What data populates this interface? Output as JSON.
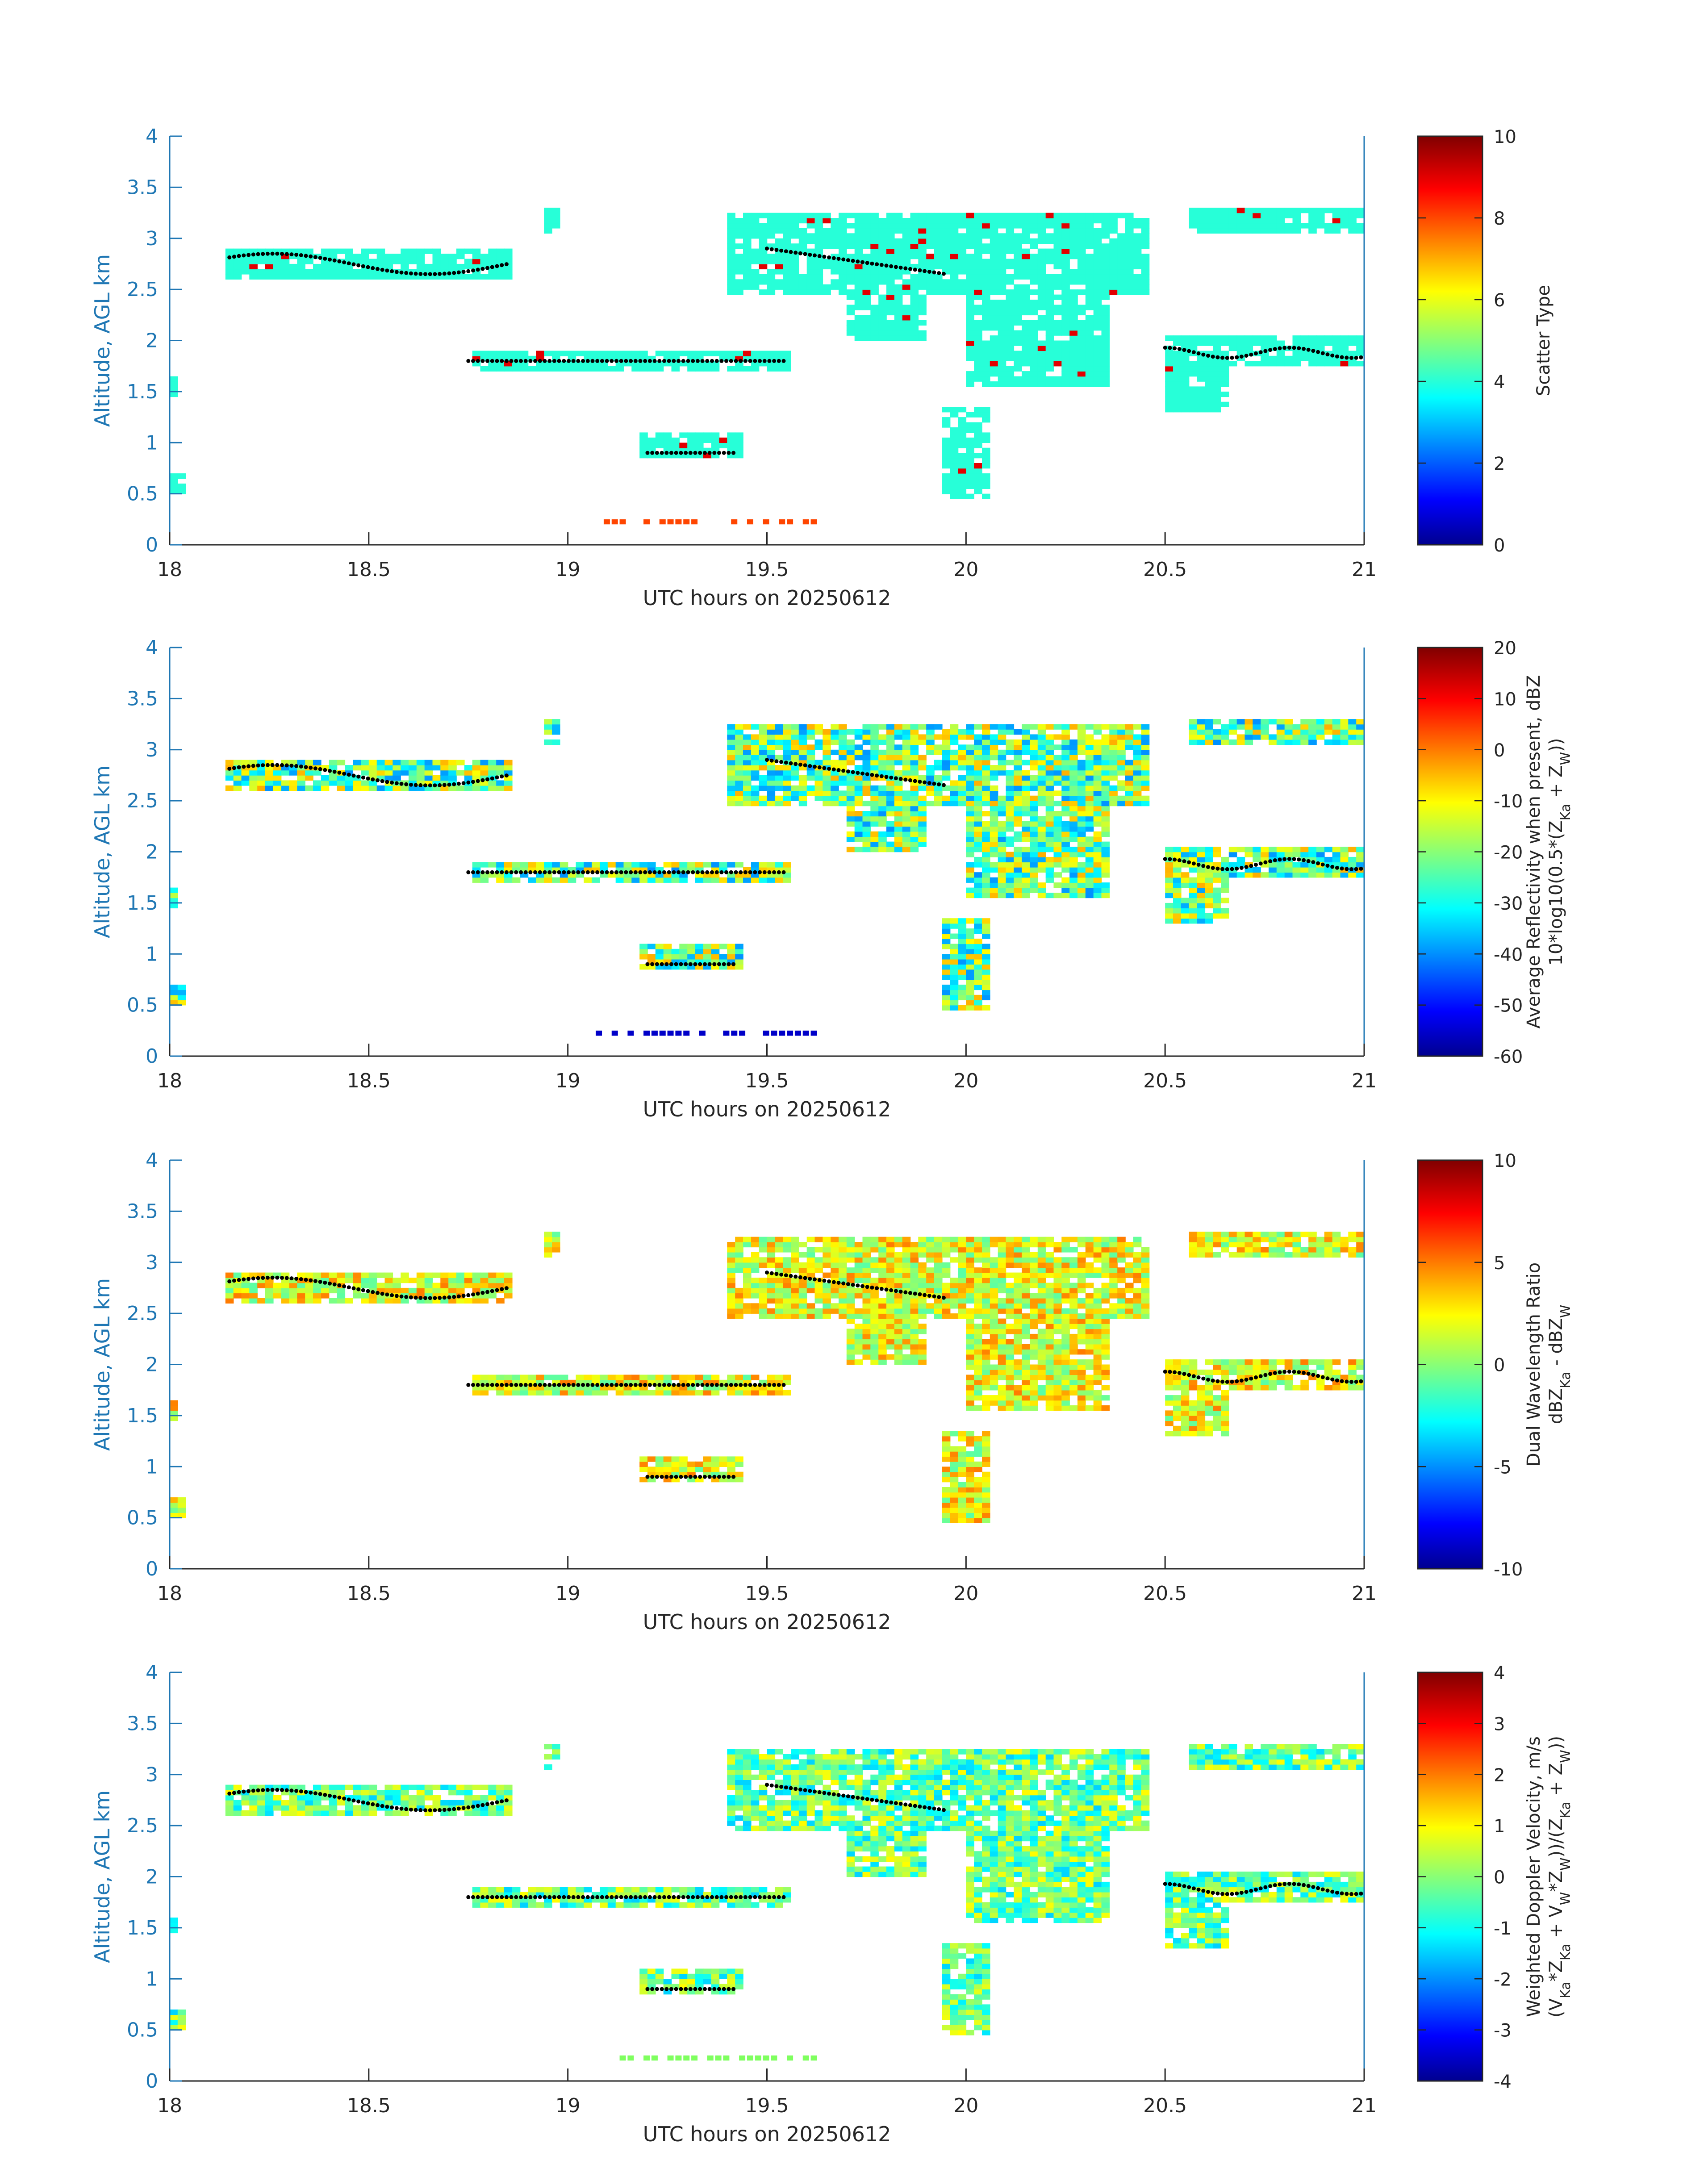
{
  "figure": {
    "date_label": "UTC hours on 20250612",
    "y_axis_label": "Altitude, AGL km",
    "x_ticks": [
      "18",
      "18.5",
      "19",
      "19.5",
      "20",
      "20.5",
      "21"
    ],
    "y_ticks": [
      "0",
      "0.5",
      "1",
      "1.5",
      "2",
      "2.5",
      "3",
      "3.5",
      "4"
    ],
    "axis_color": "#1f77b4"
  },
  "chart_data": [
    {
      "type": "heatmap",
      "xlabel": "UTC hours on 20250612",
      "ylabel": "Altitude, AGL km",
      "xlim": [
        18,
        21
      ],
      "ylim": [
        0,
        4
      ],
      "colorbar": {
        "label_lines": [
          "Scatter Type"
        ],
        "ticks": [
          "0",
          "2",
          "4",
          "6",
          "8",
          "10"
        ],
        "range": [
          0,
          10
        ]
      },
      "dominant_value": 4,
      "note_regions": [
        {
          "x": [
            18.15,
            18.85
          ],
          "y": [
            2.6,
            2.9
          ],
          "value": 4
        },
        {
          "x": [
            19.4,
            21.0
          ],
          "y": [
            1.5,
            3.2
          ],
          "value": 4
        },
        {
          "x": [
            19.05,
            19.6
          ],
          "y": [
            0.2,
            0.25
          ],
          "value": 9
        }
      ],
      "overlay": "boundary_dots"
    },
    {
      "type": "heatmap",
      "xlabel": "UTC hours on 20250612",
      "ylabel": "Altitude, AGL km",
      "xlim": [
        18,
        21
      ],
      "ylim": [
        0,
        4
      ],
      "colorbar": {
        "label_lines": [
          "Average Reflectivity when present, dBZ",
          "10*log10(0.5*(Z",
          "Ka",
          " + Z",
          "W",
          "))"
        ],
        "ticks": [
          "20",
          "10",
          "0",
          "-10",
          "-20",
          "-30",
          "-40",
          "-50",
          "-60"
        ],
        "range": [
          -60,
          20
        ]
      },
      "overlay": "boundary_dots"
    },
    {
      "type": "heatmap",
      "xlabel": "UTC hours on 20250612",
      "ylabel": "Altitude, AGL km",
      "xlim": [
        18,
        21
      ],
      "ylim": [
        0,
        4
      ],
      "colorbar": {
        "label_lines": [
          "Dual Wavelength Ratio",
          "dBZ",
          "Ka",
          " - dBZ",
          "W"
        ],
        "ticks": [
          "10",
          "5",
          "0",
          "-5",
          "-10"
        ],
        "range": [
          -10,
          10
        ]
      },
      "overlay": "boundary_dots"
    },
    {
      "type": "heatmap",
      "xlabel": "UTC hours on 20250612",
      "ylabel": "Altitude, AGL km",
      "xlim": [
        18,
        21
      ],
      "ylim": [
        0,
        4
      ],
      "colorbar": {
        "label_lines": [
          "Weighted Doppler Velocity, m/s",
          "(V",
          "Ka",
          "*Z",
          "Ka",
          " + V",
          "W",
          "*Z",
          "W",
          "))/(Z",
          "Ka",
          " + Z",
          "W",
          "))"
        ],
        "ticks": [
          "4",
          "3",
          "2",
          "1",
          "0",
          "-1",
          "-2",
          "-3",
          "-4"
        ],
        "range": [
          -4,
          4
        ]
      },
      "overlay": "boundary_dots"
    }
  ]
}
